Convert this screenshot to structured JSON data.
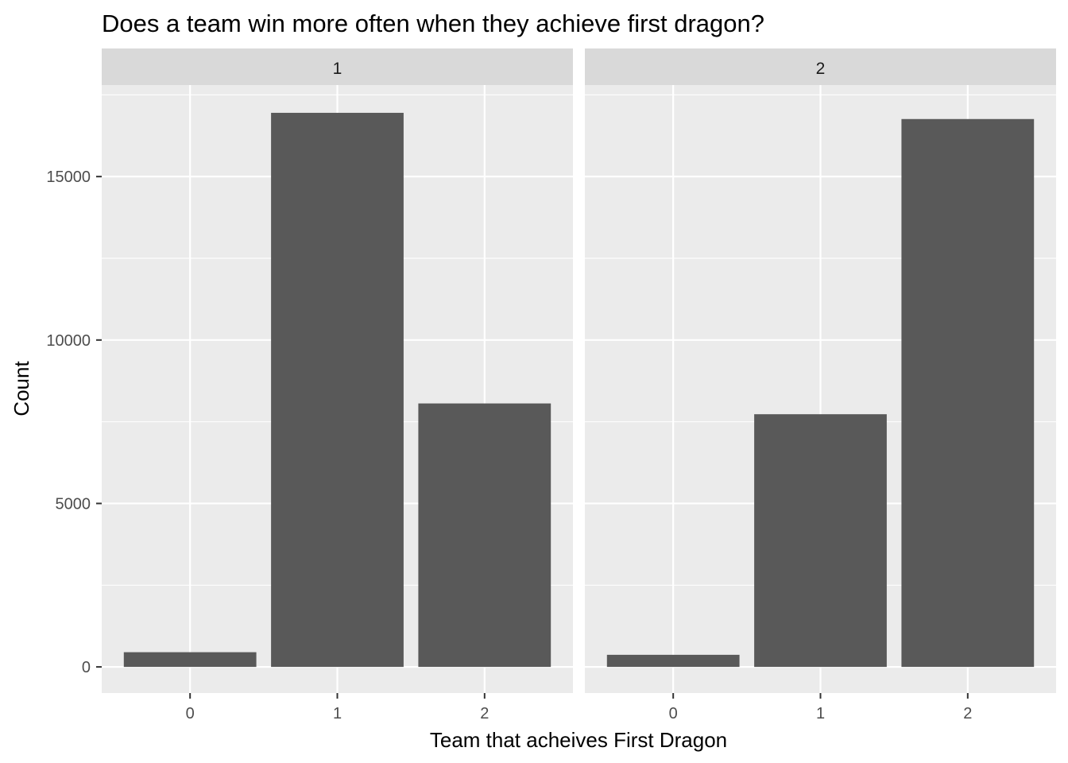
{
  "chart_data": {
    "type": "bar",
    "title": "Does a team win more often when they achieve first dragon?",
    "xlabel": "Team that acheives First Dragon",
    "ylabel": "Count",
    "categories": [
      "0",
      "1",
      "2"
    ],
    "yticks": [
      0,
      5000,
      10000,
      15000
    ],
    "ylim": [
      -800,
      17800
    ],
    "grid": true,
    "facets": [
      {
        "label": "1",
        "values": [
          450,
          16950,
          8060
        ]
      },
      {
        "label": "2",
        "values": [
          370,
          7730,
          16760
        ]
      }
    ],
    "colors": {
      "bar": "#595959",
      "panel": "#EBEBEB",
      "strip": "#D9D9D9",
      "grid": "#FFFFFF"
    }
  }
}
